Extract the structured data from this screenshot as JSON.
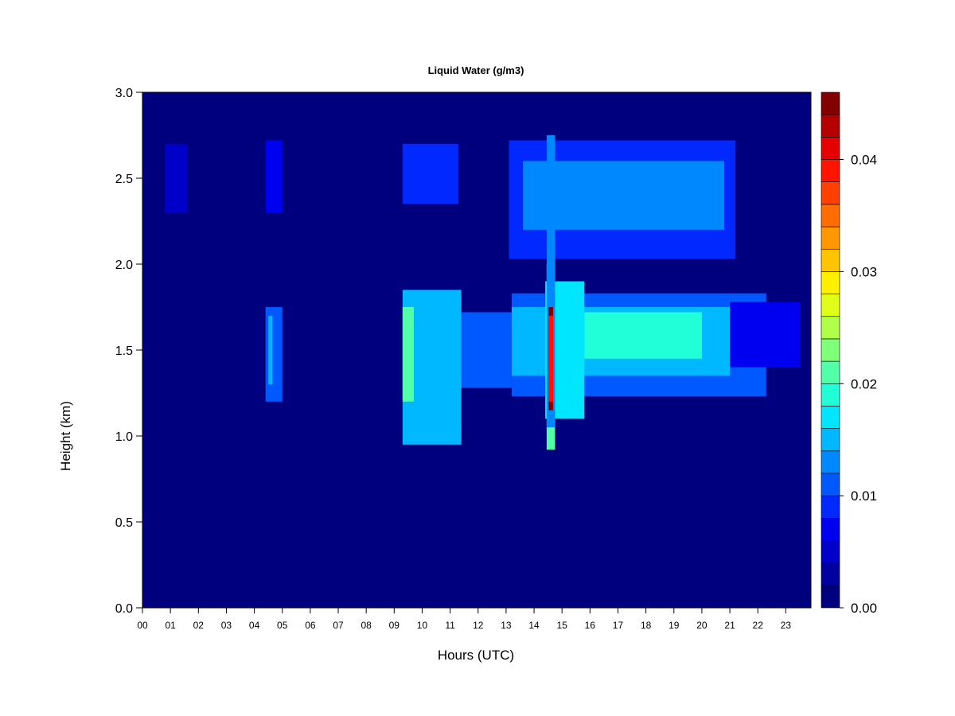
{
  "chart_data": {
    "type": "heatmap",
    "title": "Liquid Water (g/m3)",
    "xlabel": "Hours (UTC)",
    "ylabel": "Height (km)",
    "xlim": [
      0,
      23.9
    ],
    "ylim": [
      0,
      3.0
    ],
    "x_ticks": [
      "00",
      "01",
      "02",
      "03",
      "04",
      "05",
      "06",
      "07",
      "08",
      "09",
      "10",
      "11",
      "12",
      "13",
      "14",
      "15",
      "16",
      "17",
      "18",
      "19",
      "20",
      "21",
      "22",
      "23"
    ],
    "y_ticks": [
      "0.0",
      "0.5",
      "1.0",
      "1.5",
      "2.0",
      "2.5",
      "3.0"
    ],
    "colorbar": {
      "min": 0.0,
      "max": 0.046,
      "ticks": [
        "0.00",
        "0.01",
        "0.02",
        "0.03",
        "0.04"
      ],
      "colors": [
        "#00007f",
        "#0000a0",
        "#0000c8",
        "#0000f0",
        "#0028ff",
        "#0058ff",
        "#0088ff",
        "#00b8ff",
        "#00e6ff",
        "#20ffd8",
        "#50ffa8",
        "#80ff78",
        "#b0ff48",
        "#e0ff18",
        "#fff000",
        "#ffc400",
        "#ff9800",
        "#ff6c00",
        "#ff4000",
        "#ff1400",
        "#e60000",
        "#b40000",
        "#820000"
      ]
    },
    "features": [
      {
        "t0": 9.3,
        "t1": 11.4,
        "h0": 0.95,
        "h1": 1.85,
        "level": 0.014
      },
      {
        "t0": 9.3,
        "t1": 9.7,
        "h0": 1.2,
        "h1": 1.75,
        "level": 0.02
      },
      {
        "t0": 9.3,
        "t1": 11.3,
        "h0": 2.35,
        "h1": 2.7,
        "level": 0.008
      },
      {
        "t0": 11.4,
        "t1": 13.2,
        "h0": 1.28,
        "h1": 1.72,
        "level": 0.01
      },
      {
        "t0": 13.1,
        "t1": 21.2,
        "h0": 2.03,
        "h1": 2.72,
        "level": 0.008
      },
      {
        "t0": 13.6,
        "t1": 20.8,
        "h0": 2.2,
        "h1": 2.6,
        "level": 0.012
      },
      {
        "t0": 13.2,
        "t1": 22.3,
        "h0": 1.23,
        "h1": 1.83,
        "level": 0.01
      },
      {
        "t0": 13.2,
        "t1": 21.0,
        "h0": 1.35,
        "h1": 1.75,
        "level": 0.014
      },
      {
        "t0": 15.8,
        "t1": 20.0,
        "h0": 1.45,
        "h1": 1.72,
        "level": 0.018
      },
      {
        "t0": 21.0,
        "t1": 23.5,
        "h0": 1.4,
        "h1": 1.78,
        "level": 0.006
      },
      {
        "t0": 14.4,
        "t1": 15.8,
        "h0": 1.1,
        "h1": 1.9,
        "level": 0.016
      },
      {
        "t0": 14.45,
        "t1": 14.75,
        "h0": 0.92,
        "h1": 2.0,
        "level": 0.022
      },
      {
        "t0": 14.45,
        "t1": 14.75,
        "h0": 1.05,
        "h1": 2.75,
        "level": 0.012
      },
      {
        "t0": 14.52,
        "t1": 14.68,
        "h0": 1.15,
        "h1": 1.75,
        "level": 0.046
      },
      {
        "t0": 14.52,
        "t1": 14.68,
        "h0": 1.2,
        "h1": 1.7,
        "level": 0.038
      },
      {
        "t0": 4.4,
        "t1": 5.0,
        "h0": 1.2,
        "h1": 1.75,
        "level": 0.01
      },
      {
        "t0": 4.5,
        "t1": 4.65,
        "h0": 1.3,
        "h1": 1.7,
        "level": 0.014
      },
      {
        "t0": 4.4,
        "t1": 5.0,
        "h0": 2.3,
        "h1": 2.72,
        "level": 0.006
      },
      {
        "t0": 0.8,
        "t1": 1.6,
        "h0": 2.3,
        "h1": 2.7,
        "level": 0.004
      }
    ]
  }
}
